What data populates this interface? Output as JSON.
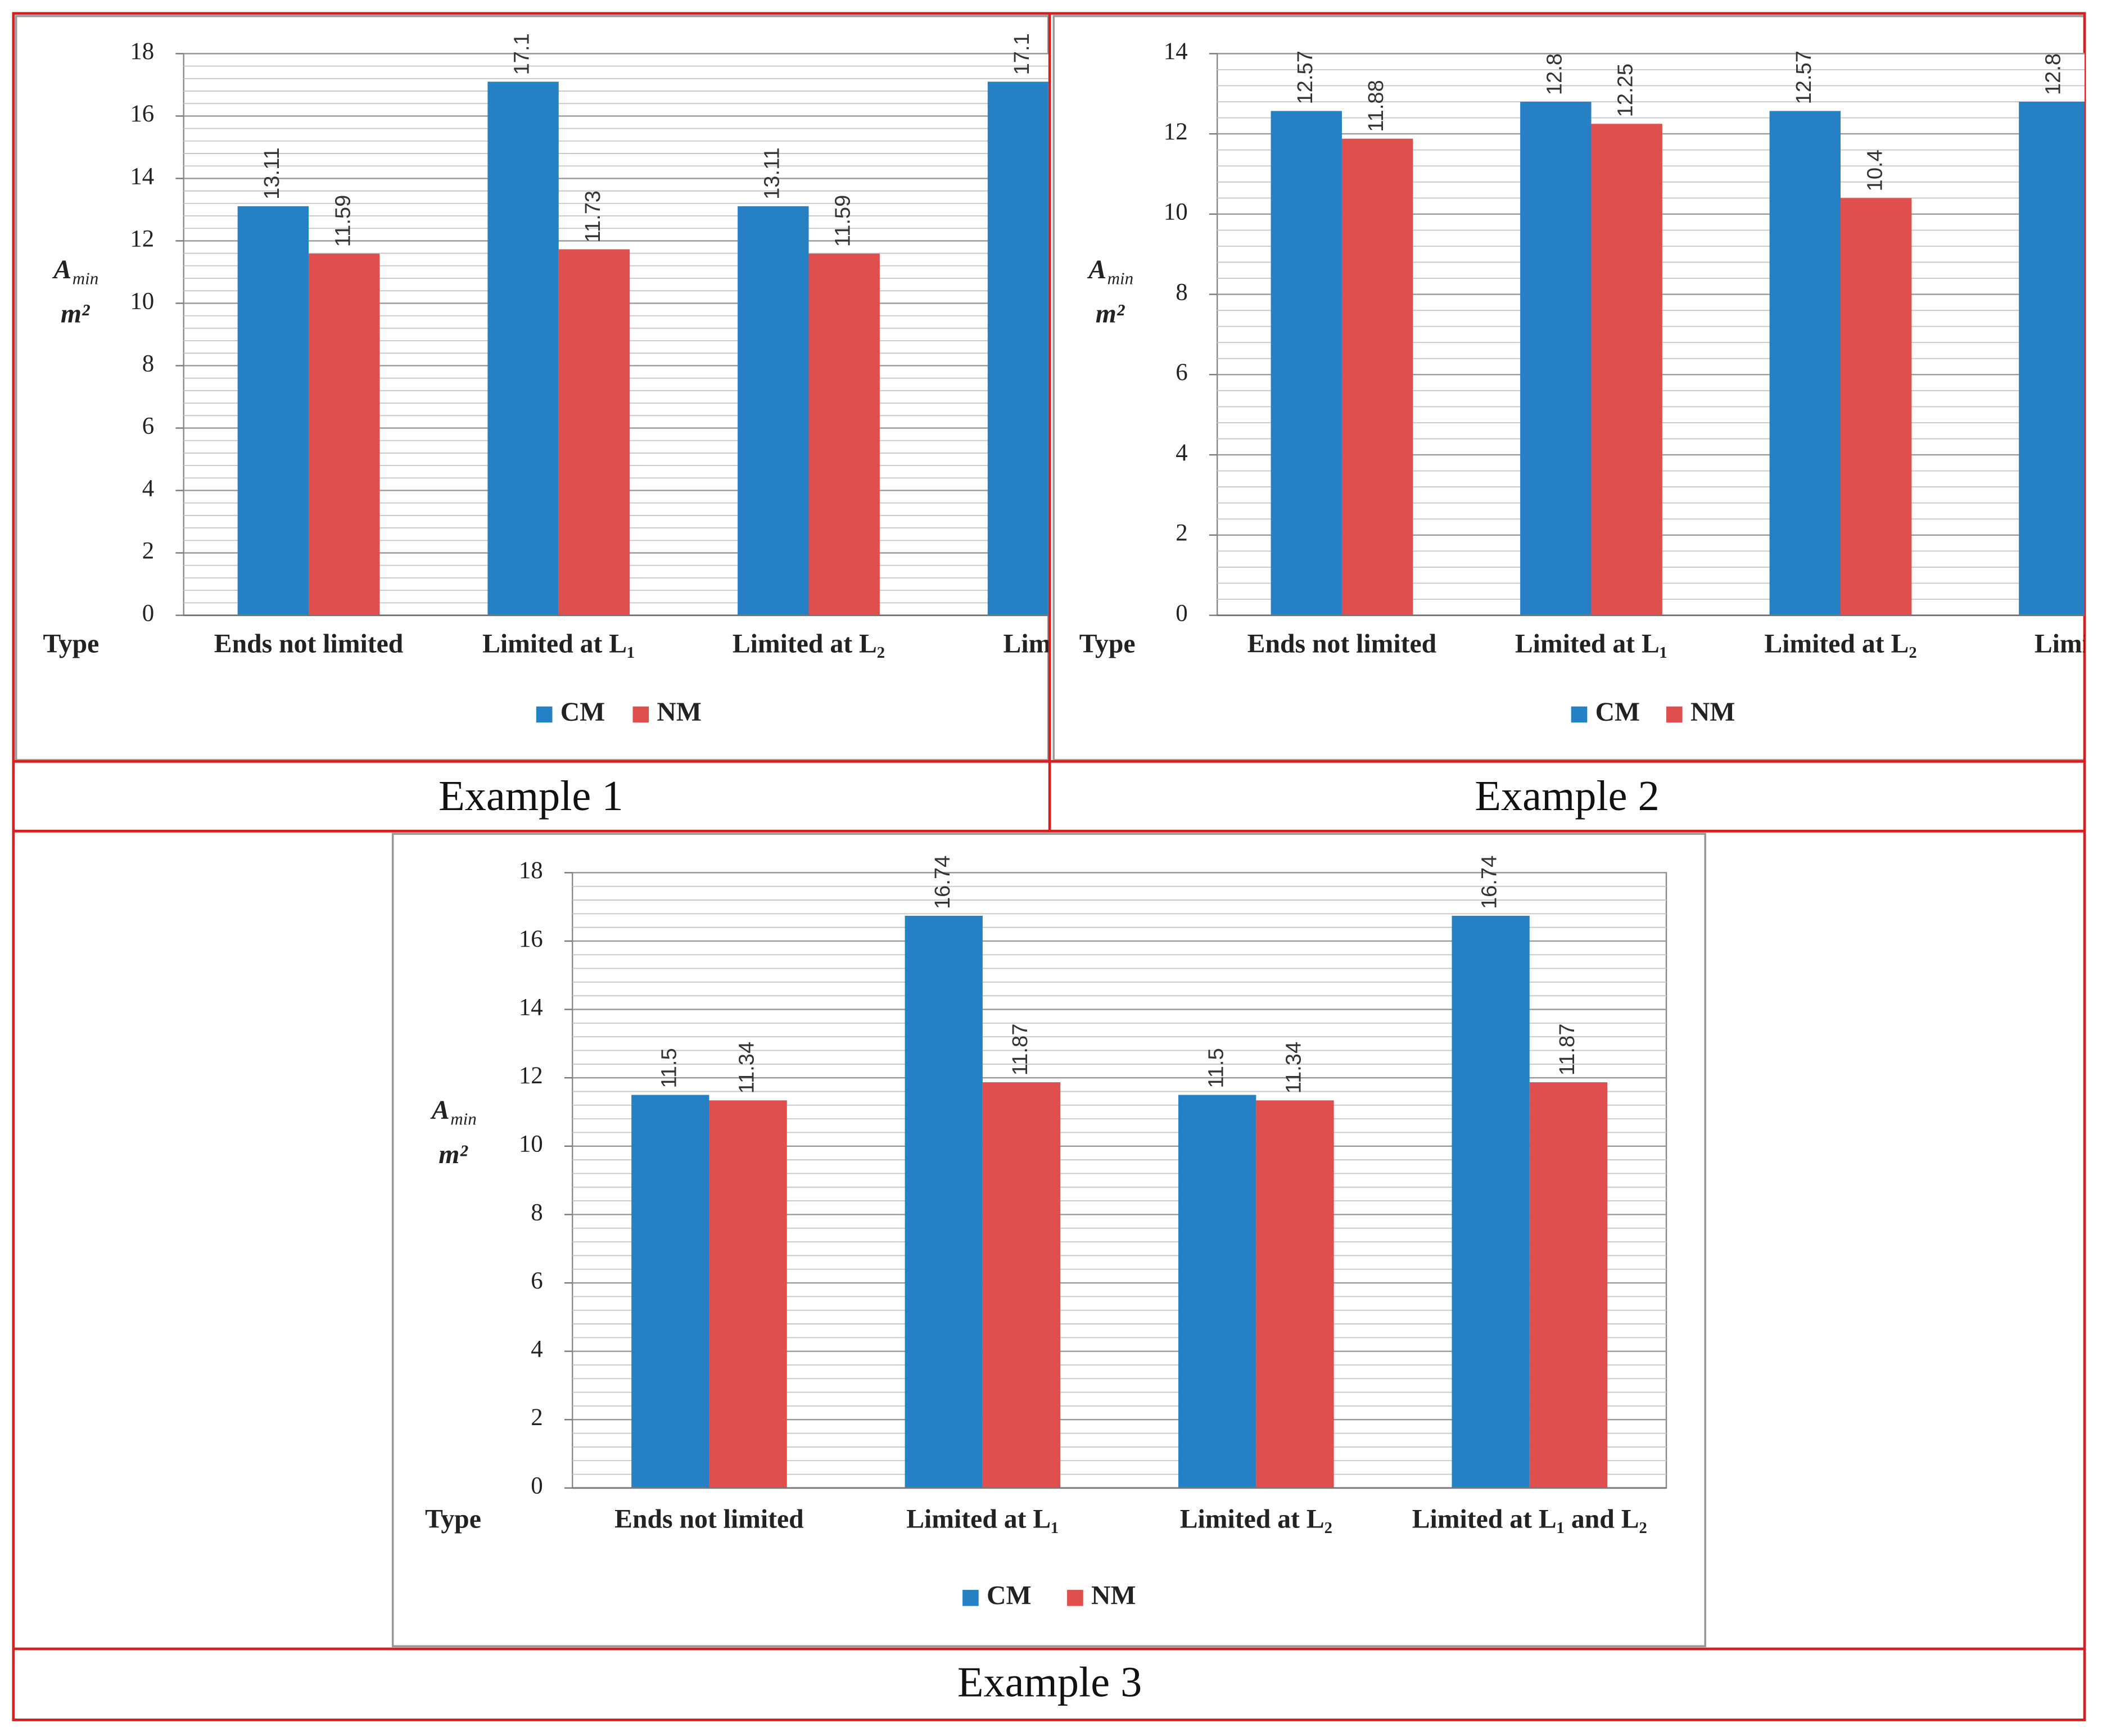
{
  "chart_data": [
    {
      "type": "bar",
      "caption": "Example 1",
      "x_label": "Type",
      "y_label": {
        "symbol": "A",
        "subscript": "min",
        "unit": "m²"
      },
      "categories": [
        "Ends not limited",
        "Limited at L₁",
        "Limited at L₂",
        "Limited a"
      ],
      "series": [
        {
          "name": "CM",
          "color": "#2581c4",
          "values": [
            13.11,
            17.1,
            13.11,
            17.1
          ]
        },
        {
          "name": "NM",
          "color": "#df4f4e",
          "values": [
            11.59,
            11.73,
            11.59,
            null
          ]
        }
      ],
      "ylim": [
        0,
        18
      ],
      "yticks": [
        0,
        2,
        4,
        6,
        8,
        10,
        12,
        14,
        16,
        18
      ],
      "grid": true,
      "minor_grid": true,
      "legend": "bottom"
    },
    {
      "type": "bar",
      "caption": "Example 2",
      "x_label": "Type",
      "y_label": {
        "symbol": "A",
        "subscript": "min",
        "unit": "m²"
      },
      "categories": [
        "Ends not limited",
        "Limited at L₁",
        "Limited at L₂",
        "Limited a"
      ],
      "series": [
        {
          "name": "CM",
          "color": "#2581c4",
          "values": [
            12.57,
            12.8,
            12.57,
            12.8
          ]
        },
        {
          "name": "NM",
          "color": "#df4f4e",
          "values": [
            11.88,
            12.25,
            10.4,
            null
          ]
        }
      ],
      "ylim": [
        0,
        14
      ],
      "yticks": [
        0,
        2,
        4,
        6,
        8,
        10,
        12,
        14
      ],
      "grid": true,
      "minor_grid": true,
      "legend": "bottom"
    },
    {
      "type": "bar",
      "caption": "Example 3",
      "x_label": "Type",
      "y_label": {
        "symbol": "A",
        "subscript": "min",
        "unit": "m²"
      },
      "categories": [
        "Ends not limited",
        "Limited at L₁",
        "Limited at L₂",
        "Limited at L₁ and L₂"
      ],
      "series": [
        {
          "name": "CM",
          "color": "#2581c4",
          "values": [
            11.5,
            16.74,
            11.5,
            16.74
          ]
        },
        {
          "name": "NM",
          "color": "#df4f4e",
          "values": [
            11.34,
            11.87,
            11.34,
            11.87
          ]
        }
      ],
      "ylim": [
        0,
        18
      ],
      "yticks": [
        0,
        2,
        4,
        6,
        8,
        10,
        12,
        14,
        16,
        18
      ],
      "grid": true,
      "minor_grid": true,
      "legend": "bottom"
    }
  ]
}
